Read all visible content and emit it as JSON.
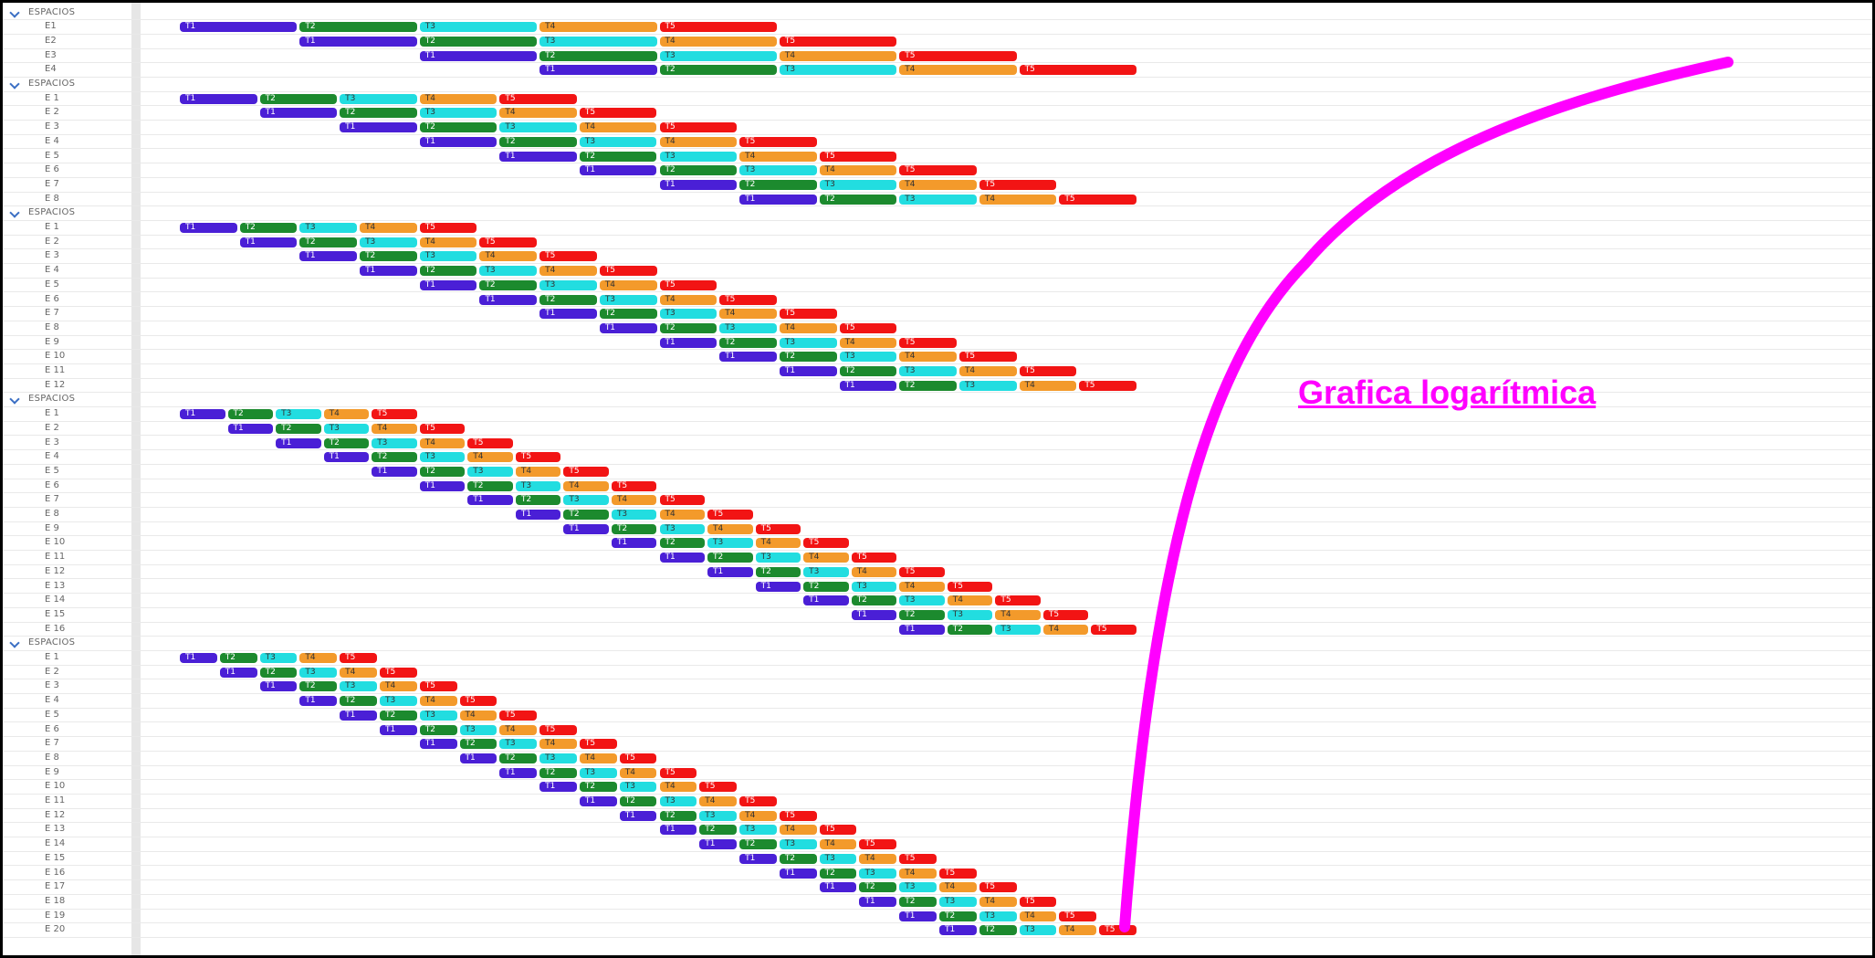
{
  "section_label": "ESPACIOS",
  "tasks": [
    "T1",
    "T2",
    "T3",
    "T4",
    "T5"
  ],
  "task_colors": {
    "T1": "#4a1fd6",
    "T2": "#1c8a2e",
    "T3": "#22dde0",
    "T4": "#f39a2b",
    "T5": "#f21414"
  },
  "annotation_color": "#ff00ff",
  "groups": [
    {
      "rows": [
        "E1",
        "E2",
        "E3",
        "E4"
      ]
    },
    {
      "rows": [
        "E 1",
        "E 2",
        "E 3",
        "E 4",
        "E 5",
        "E 6",
        "E 7",
        "E 8"
      ]
    },
    {
      "rows": [
        "E 1",
        "E 2",
        "E 3",
        "E 4",
        "E 5",
        "E 6",
        "E 7",
        "E 8",
        "E 9",
        "E 10",
        "E 11",
        "E 12"
      ]
    },
    {
      "rows": [
        "E 1",
        "E 2",
        "E 3",
        "E 4",
        "E 5",
        "E 6",
        "E 7",
        "E 8",
        "E 9",
        "E 10",
        "E 11",
        "E 12",
        "E 13",
        "E 14",
        "E 15",
        "E 16"
      ]
    },
    {
      "rows": [
        "E 1",
        "E 2",
        "E 3",
        "E 4",
        "E 5",
        "E 6",
        "E 7",
        "E 8",
        "E 9",
        "E 10",
        "E 11",
        "E 12",
        "E 13",
        "E 14",
        "E 15",
        "E 16",
        "E 17",
        "E 18",
        "E 19",
        "E 20"
      ]
    }
  ],
  "annotation": {
    "text": "Grafica logarítmica",
    "curve": "logarithmic"
  }
}
